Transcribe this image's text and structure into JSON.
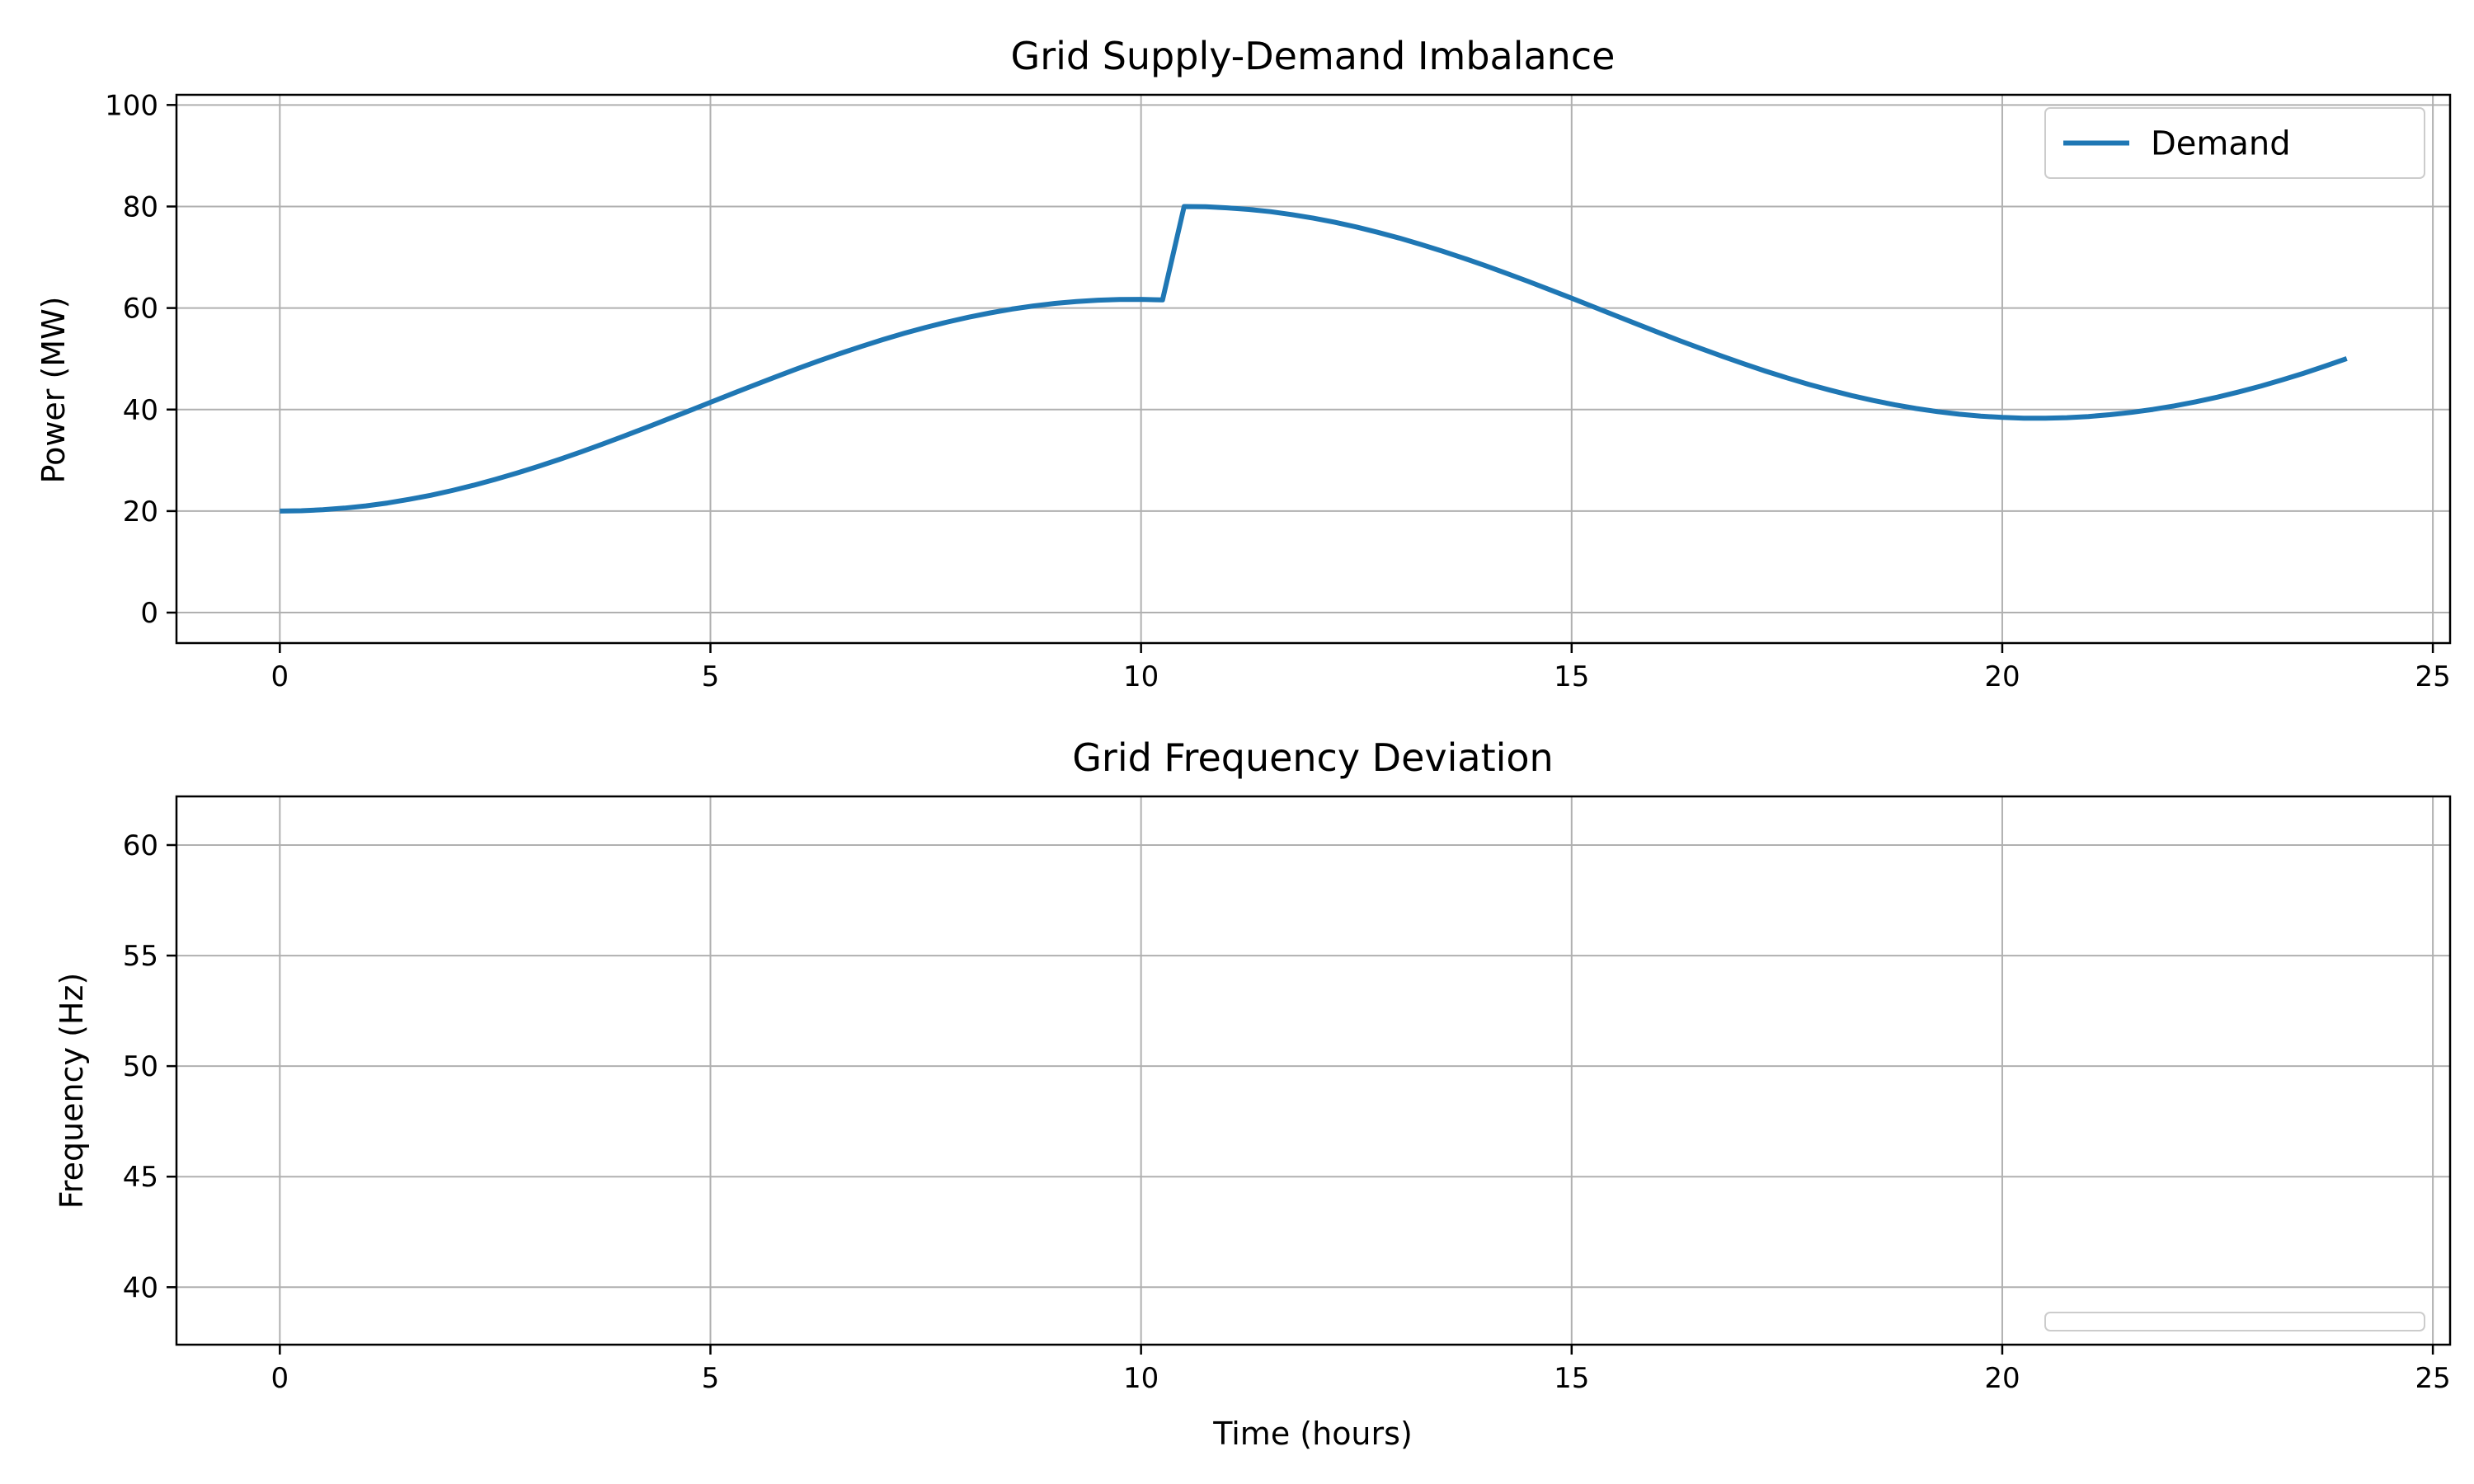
{
  "chart_data": [
    {
      "type": "line",
      "title": "Grid Supply-Demand Imbalance",
      "xlabel": "",
      "ylabel": "Power (MW)",
      "xlim": [
        -1.2,
        25.2
      ],
      "ylim": [
        -6,
        102
      ],
      "xticks": [
        0,
        5,
        10,
        15,
        20,
        25
      ],
      "xtick_labels": [
        "0",
        "5",
        "10",
        "15",
        "20",
        "25"
      ],
      "yticks": [
        0,
        20,
        40,
        60,
        80,
        100
      ],
      "ytick_labels": [
        "0",
        "20",
        "40",
        "60",
        "80",
        "100"
      ],
      "grid": true,
      "legend_position": "top-right",
      "x": [
        0,
        0.25,
        0.5,
        0.75,
        1.0,
        1.25,
        1.5,
        1.75,
        2.0,
        2.25,
        2.5,
        2.75,
        3.0,
        3.25,
        3.5,
        3.75,
        4.0,
        4.25,
        4.5,
        4.75,
        5.0,
        5.25,
        5.5,
        5.75,
        6.0,
        6.25,
        6.5,
        6.75,
        7.0,
        7.25,
        7.5,
        7.75,
        8.0,
        8.25,
        8.5,
        8.75,
        9.0,
        9.25,
        9.5,
        9.75,
        10.0,
        10.25,
        10.5,
        10.75,
        11.0,
        11.25,
        11.5,
        11.75,
        12.0,
        12.25,
        12.5,
        12.75,
        13.0,
        13.25,
        13.5,
        13.75,
        14.0,
        14.25,
        14.5,
        14.75,
        15.0,
        15.25,
        15.5,
        15.75,
        16.0,
        16.25,
        16.5,
        16.75,
        17.0,
        17.25,
        17.5,
        17.75,
        18.0,
        18.25,
        18.5,
        18.75,
        19.0,
        19.25,
        19.5,
        19.75,
        20.0,
        20.25,
        20.5,
        20.75,
        21.0,
        21.25,
        21.5,
        21.75,
        22.0,
        22.25,
        22.5,
        22.75,
        23.0,
        23.25,
        23.5,
        23.75,
        24.0
      ],
      "series": [
        {
          "name": "Demand",
          "color": "#1f77b4",
          "style": "solid",
          "width": 6,
          "values": [
            20.0,
            20.06,
            20.26,
            20.58,
            21.02,
            21.6,
            22.3,
            23.11,
            24.04,
            25.09,
            26.23,
            27.47,
            28.79,
            30.2,
            31.67,
            33.21,
            34.79,
            36.42,
            38.07,
            39.74,
            41.42,
            43.1,
            44.76,
            46.39,
            47.98,
            49.52,
            51.0,
            52.42,
            53.76,
            55.02,
            56.18,
            57.24,
            58.2,
            59.05,
            59.79,
            60.41,
            60.91,
            61.29,
            61.55,
            61.69,
            61.7,
            61.6,
            80.0,
            79.94,
            79.74,
            79.42,
            78.98,
            78.4,
            77.7,
            76.89,
            75.96,
            74.91,
            73.77,
            72.53,
            71.21,
            69.8,
            68.33,
            66.79,
            65.21,
            63.58,
            61.93,
            60.26,
            58.58,
            56.9,
            55.24,
            53.61,
            52.02,
            50.48,
            49.0,
            47.58,
            46.24,
            44.98,
            43.82,
            42.76,
            41.8,
            40.95,
            40.21,
            39.59,
            39.09,
            38.71,
            38.45,
            38.31,
            38.3,
            38.4,
            38.63,
            38.98,
            39.44,
            40.02,
            40.72,
            41.53,
            42.45,
            43.48,
            44.61,
            45.84,
            47.16,
            48.57,
            50.05
          ]
        }
      ]
    },
    {
      "type": "line",
      "title": "Grid Frequency Deviation",
      "xlabel": "Time (hours)",
      "ylabel": "Frequency (Hz)",
      "xlim": [
        -1.2,
        25.2
      ],
      "ylim": [
        37.4,
        62.2
      ],
      "xticks": [
        0,
        5,
        10,
        15,
        20,
        25
      ],
      "xtick_labels": [
        "0",
        "5",
        "10",
        "15",
        "20",
        "25"
      ],
      "yticks": [
        40,
        45,
        50,
        55,
        60
      ],
      "ytick_labels": [
        "40",
        "45",
        "50",
        "55",
        "60"
      ],
      "grid": true,
      "legend_position": "bottom-right",
      "x": [],
      "series": []
    }
  ]
}
